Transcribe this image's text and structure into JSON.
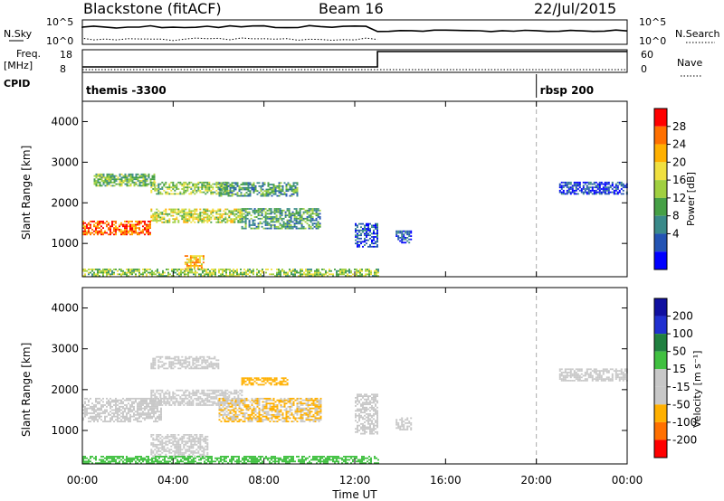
{
  "header": {
    "station": "Blackstone (fitACF)",
    "beam": "Beam 16",
    "date": "22/Jul/2015"
  },
  "noise_panel": {
    "left_label": "N.Sky",
    "left_ticks": [
      "10^5",
      "10^0"
    ],
    "right_label": "N.Search",
    "right_ticks": [
      "10^5",
      "10^0"
    ]
  },
  "freq_panel": {
    "left_label_1": "Freq.",
    "left_label_2": "[MHz]",
    "left_ticks": [
      "18",
      "8"
    ],
    "right_label": "Nave",
    "right_ticks": [
      "60",
      "0"
    ],
    "step_hour": 13.0
  },
  "cpid_panel": {
    "label": "CPID",
    "modes": [
      {
        "name": "themis -3300",
        "start_hour": 0.0
      },
      {
        "name": "rbsp 200",
        "start_hour": 20.0
      }
    ]
  },
  "colors": {
    "power": [
      "#0000ff",
      "#2454b4",
      "#3a8a8a",
      "#46a046",
      "#a0d040",
      "#f0e040",
      "#ffb000",
      "#ff7000",
      "#ff0000"
    ],
    "velocity": [
      "#1010a0",
      "#2030d0",
      "#208040",
      "#40c040",
      "#c8c8c8",
      "#c8c8c8",
      "#ffb000",
      "#ff7000",
      "#ff0000"
    ],
    "noise_line": "#000000",
    "marker_dash": "#aaaaaa"
  },
  "chart_data": [
    {
      "type": "heatmap",
      "name": "power",
      "title": "",
      "xlabel": "",
      "ylabel": "Slant Range [km]",
      "x_ticks": [
        "00:00",
        "04:00",
        "08:00",
        "12:00",
        "16:00",
        "20:00",
        "00:00"
      ],
      "xlim_hours": [
        0,
        24
      ],
      "ylim_km": [
        180,
        4500
      ],
      "y_ticks": [
        1000,
        2000,
        3000,
        4000
      ],
      "colorbar_label": "Power [dB]",
      "colorbar_ticks": [
        "28",
        "24",
        "20",
        "16",
        "12",
        "8",
        "4"
      ],
      "colorbar_range": [
        0,
        30
      ],
      "echo_bands": [
        {
          "t0": 0.0,
          "t1": 3.0,
          "r0": 1200,
          "r1": 1550,
          "power": 26
        },
        {
          "t0": 3.0,
          "t1": 7.0,
          "r0": 1500,
          "r1": 1850,
          "power": 18
        },
        {
          "t0": 7.0,
          "t1": 10.5,
          "r0": 1350,
          "r1": 1850,
          "power": 12
        },
        {
          "t0": 4.5,
          "t1": 5.3,
          "r0": 350,
          "r1": 700,
          "power": 22
        },
        {
          "t0": 0.5,
          "t1": 3.2,
          "r0": 2400,
          "r1": 2700,
          "power": 14
        },
        {
          "t0": 3.0,
          "t1": 6.5,
          "r0": 2200,
          "r1": 2500,
          "power": 16
        },
        {
          "t0": 6.0,
          "t1": 9.5,
          "r0": 2150,
          "r1": 2500,
          "power": 12
        },
        {
          "t0": 12.0,
          "t1": 13.0,
          "r0": 900,
          "r1": 1500,
          "power": 7
        },
        {
          "t0": 13.8,
          "t1": 14.5,
          "r0": 1000,
          "r1": 1300,
          "power": 7
        },
        {
          "t0": 21.0,
          "t1": 24.0,
          "r0": 2200,
          "r1": 2500,
          "power": 6
        },
        {
          "t0": 0.0,
          "t1": 13.0,
          "r0": 180,
          "r1": 350,
          "power": 16
        }
      ]
    },
    {
      "type": "heatmap",
      "name": "velocity",
      "title": "",
      "xlabel": "Time UT",
      "ylabel": "Slant Range [km]",
      "x_ticks": [
        "00:00",
        "04:00",
        "08:00",
        "12:00",
        "16:00",
        "20:00",
        "00:00"
      ],
      "xlim_hours": [
        0,
        24
      ],
      "ylim_km": [
        180,
        4500
      ],
      "y_ticks": [
        1000,
        2000,
        3000,
        4000
      ],
      "colorbar_label": "Velocity [m s⁻¹]",
      "colorbar_ticks": [
        "200",
        "100",
        "50",
        "15",
        "-15",
        "-50",
        "-100",
        "-200"
      ],
      "colorbar_range": [
        -250,
        250
      ],
      "echo_bands": [
        {
          "t0": 0.0,
          "t1": 3.5,
          "r0": 1200,
          "r1": 1800,
          "velocity": 0
        },
        {
          "t0": 3.0,
          "t1": 7.0,
          "r0": 1600,
          "r1": 2000,
          "velocity": 0
        },
        {
          "t0": 3.0,
          "t1": 5.5,
          "r0": 350,
          "r1": 900,
          "velocity": 0
        },
        {
          "t0": 6.0,
          "t1": 10.5,
          "r0": 1200,
          "r1": 1800,
          "velocity": -50
        },
        {
          "t0": 3.0,
          "t1": 6.0,
          "r0": 2500,
          "r1": 2800,
          "velocity": -40
        },
        {
          "t0": 7.0,
          "t1": 9.0,
          "r0": 2100,
          "r1": 2300,
          "velocity": -60
        },
        {
          "t0": 12.0,
          "t1": 13.0,
          "r0": 900,
          "r1": 1900,
          "velocity": 0
        },
        {
          "t0": 13.8,
          "t1": 14.5,
          "r0": 1000,
          "r1": 1300,
          "velocity": 0
        },
        {
          "t0": 21.0,
          "t1": 24.0,
          "r0": 2200,
          "r1": 2500,
          "velocity": 0
        },
        {
          "t0": 0.0,
          "t1": 13.0,
          "r0": 180,
          "r1": 350,
          "velocity": 30
        }
      ]
    }
  ]
}
